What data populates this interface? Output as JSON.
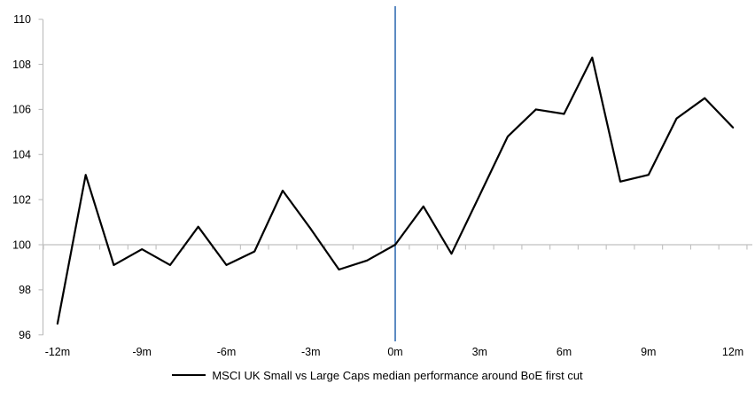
{
  "chart_data": {
    "type": "line",
    "title": "",
    "xlabel": "",
    "ylabel": "",
    "x": [
      -12,
      -11,
      -10,
      -9,
      -8,
      -7,
      -6,
      -5,
      -4,
      -3,
      -2,
      -1,
      0,
      1,
      2,
      3,
      4,
      5,
      6,
      7,
      8,
      9,
      10,
      11,
      12
    ],
    "series": [
      {
        "name": "MSCI UK Small vs Large Caps median performance around BoE first cut",
        "values": [
          96.5,
          103.1,
          99.1,
          99.8,
          99.1,
          100.8,
          99.1,
          99.7,
          102.4,
          100.7,
          98.9,
          99.3,
          100.0,
          101.7,
          99.6,
          102.2,
          104.8,
          106.0,
          105.8,
          108.3,
          102.8,
          103.1,
          105.6,
          106.5,
          105.2
        ]
      }
    ],
    "xticks": [
      {
        "value": -12,
        "label": "-12m"
      },
      {
        "value": -9,
        "label": "-9m"
      },
      {
        "value": -6,
        "label": "-6m"
      },
      {
        "value": -3,
        "label": "-3m"
      },
      {
        "value": 0,
        "label": "0m"
      },
      {
        "value": 3,
        "label": "3m"
      },
      {
        "value": 6,
        "label": "6m"
      },
      {
        "value": 9,
        "label": "9m"
      },
      {
        "value": 12,
        "label": "12m"
      }
    ],
    "yticks": [
      96,
      98,
      100,
      102,
      104,
      106,
      108,
      110
    ],
    "ylim": [
      96,
      110
    ],
    "xlim": [
      -12.5,
      12.5
    ],
    "minor_xtick_interval_months": 1,
    "baseline_value": 100,
    "event_line_x": 0,
    "grid": "off",
    "legend_position": "bottom-center",
    "colors": {
      "series": "#000000",
      "event_line": "#4a7ebb",
      "baseline": "#c1c1c1",
      "axis": "#bfbfbf",
      "tick_text": "#000000",
      "background": "#ffffff"
    }
  },
  "legend": {
    "series_label": "MSCI UK Small vs Large Caps median performance around BoE first cut"
  }
}
